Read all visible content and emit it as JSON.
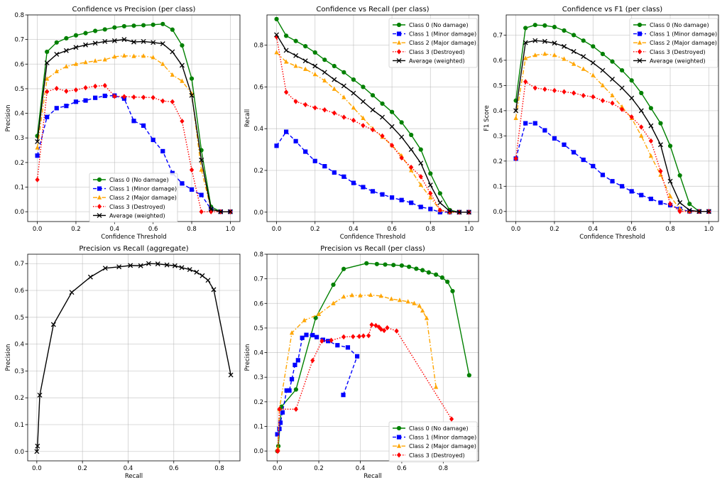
{
  "chart_data": [
    {
      "type": "line",
      "title": "Confidence vs Precision (per class)",
      "xlabel": "Confidence Threshold",
      "ylabel": "Precision",
      "xlim": [
        -0.05,
        1.05
      ],
      "ylim": [
        -0.04,
        0.8
      ],
      "xticks": [
        0.0,
        0.2,
        0.4,
        0.6,
        0.8,
        1.0
      ],
      "xtick_labels": [
        "0.0",
        "0.2",
        "0.4",
        "0.6",
        "0.8",
        "1.0"
      ],
      "yticks": [
        0.0,
        0.1,
        0.2,
        0.3,
        0.4,
        0.5,
        0.6,
        0.7,
        0.8
      ],
      "ytick_labels": [
        "0.0",
        "0.1",
        "0.2",
        "0.3",
        "0.4",
        "0.5",
        "0.6",
        "0.7",
        "0.8"
      ],
      "grid": true,
      "legend_position": "bottom-center",
      "x": [
        0.0,
        0.05,
        0.1,
        0.15,
        0.2,
        0.25,
        0.3,
        0.35,
        0.4,
        0.45,
        0.5,
        0.55,
        0.6,
        0.65,
        0.7,
        0.75,
        0.8,
        0.85,
        0.9,
        0.95,
        1.0
      ],
      "series": [
        {
          "name": "Class 0 (No damage)",
          "color": "#008000",
          "marker": "circle",
          "dash": "solid",
          "values": [
            0.308,
            0.65,
            0.688,
            0.705,
            0.717,
            0.726,
            0.735,
            0.741,
            0.749,
            0.754,
            0.756,
            0.758,
            0.76,
            0.763,
            0.74,
            0.676,
            0.541,
            0.25,
            0.02,
            0.0,
            0.0
          ]
        },
        {
          "name": "Class 1 (Minor damage)",
          "color": "#0000ff",
          "marker": "square",
          "dash": "dashed",
          "values": [
            0.228,
            0.385,
            0.421,
            0.43,
            0.447,
            0.452,
            0.463,
            0.471,
            0.472,
            0.46,
            0.369,
            0.35,
            0.292,
            0.246,
            0.157,
            0.115,
            0.09,
            0.068,
            0.01,
            0.0,
            0.0
          ]
        },
        {
          "name": "Class 2 (Major damage)",
          "color": "#ffa500",
          "marker": "triangle",
          "dash": "dashdot",
          "values": [
            0.26,
            0.54,
            0.57,
            0.59,
            0.6,
            0.607,
            0.613,
            0.618,
            0.63,
            0.634,
            0.632,
            0.633,
            0.627,
            0.6,
            0.556,
            0.531,
            0.48,
            0.17,
            0.01,
            0.0,
            0.0
          ]
        },
        {
          "name": "Class 3 (Destroyed)",
          "color": "#ff0000",
          "marker": "diamond",
          "dash": "dotted",
          "values": [
            0.13,
            0.488,
            0.501,
            0.49,
            0.495,
            0.504,
            0.51,
            0.513,
            0.469,
            0.468,
            0.466,
            0.465,
            0.464,
            0.45,
            0.447,
            0.368,
            0.17,
            0.0,
            0.0,
            0.0,
            0.0
          ]
        },
        {
          "name": "Average (weighted)",
          "color": "#000000",
          "marker": "x",
          "dash": "solid",
          "values": [
            0.285,
            0.605,
            0.64,
            0.655,
            0.668,
            0.678,
            0.685,
            0.692,
            0.695,
            0.7,
            0.69,
            0.692,
            0.688,
            0.683,
            0.65,
            0.595,
            0.473,
            0.21,
            0.01,
            0.0,
            0.0
          ]
        }
      ]
    },
    {
      "type": "line",
      "title": "Confidence vs Recall (per class)",
      "xlabel": "Confidence Threshold",
      "ylabel": "Recall",
      "xlim": [
        -0.05,
        1.05
      ],
      "ylim": [
        -0.045,
        0.945
      ],
      "xticks": [
        0.0,
        0.2,
        0.4,
        0.6,
        0.8,
        1.0
      ],
      "xtick_labels": [
        "0.0",
        "0.2",
        "0.4",
        "0.6",
        "0.8",
        "1.0"
      ],
      "yticks": [
        0.0,
        0.2,
        0.4,
        0.6,
        0.8
      ],
      "ytick_labels": [
        "0.0",
        "0.2",
        "0.4",
        "0.6",
        "0.8"
      ],
      "grid": true,
      "legend_position": "top-right",
      "x": [
        0.0,
        0.05,
        0.1,
        0.15,
        0.2,
        0.25,
        0.3,
        0.35,
        0.4,
        0.45,
        0.5,
        0.55,
        0.6,
        0.65,
        0.7,
        0.75,
        0.8,
        0.85,
        0.9,
        0.95,
        1.0
      ],
      "series": [
        {
          "name": "Class 0 (No damage)",
          "color": "#008000",
          "marker": "circle",
          "dash": "solid",
          "values": [
            0.925,
            0.845,
            0.82,
            0.795,
            0.765,
            0.73,
            0.7,
            0.67,
            0.635,
            0.6,
            0.56,
            0.52,
            0.48,
            0.43,
            0.37,
            0.3,
            0.185,
            0.09,
            0.01,
            0.0,
            0.0
          ]
        },
        {
          "name": "Class 1 (Minor damage)",
          "color": "#0000ff",
          "marker": "square",
          "dash": "dashed",
          "values": [
            0.318,
            0.385,
            0.34,
            0.29,
            0.245,
            0.22,
            0.19,
            0.17,
            0.14,
            0.12,
            0.1,
            0.085,
            0.07,
            0.058,
            0.045,
            0.025,
            0.015,
            0.0,
            0.0,
            0.0,
            0.0
          ]
        },
        {
          "name": "Class 2 (Major damage)",
          "color": "#ffa500",
          "marker": "triangle",
          "dash": "dashdot",
          "values": [
            0.765,
            0.72,
            0.7,
            0.685,
            0.66,
            0.63,
            0.59,
            0.55,
            0.5,
            0.45,
            0.4,
            0.36,
            0.32,
            0.27,
            0.2,
            0.13,
            0.07,
            0.01,
            0.0,
            0.0,
            0.0
          ]
        },
        {
          "name": "Class 3 (Destroyed)",
          "color": "#ff0000",
          "marker": "diamond",
          "dash": "dotted",
          "values": [
            0.84,
            0.575,
            0.53,
            0.515,
            0.5,
            0.49,
            0.475,
            0.455,
            0.44,
            0.415,
            0.395,
            0.365,
            0.32,
            0.26,
            0.215,
            0.17,
            0.09,
            0.01,
            0.0,
            0.0,
            0.0
          ]
        },
        {
          "name": "Average (weighted)",
          "color": "#000000",
          "marker": "x",
          "dash": "solid",
          "values": [
            0.85,
            0.775,
            0.75,
            0.725,
            0.7,
            0.67,
            0.635,
            0.605,
            0.57,
            0.53,
            0.49,
            0.455,
            0.41,
            0.36,
            0.3,
            0.235,
            0.13,
            0.045,
            0.005,
            0.0,
            0.0
          ]
        }
      ]
    },
    {
      "type": "line",
      "title": "Confidence vs F1 (per class)",
      "xlabel": "Confidence Threshold",
      "ylabel": "F1 Score",
      "xlim": [
        -0.05,
        1.05
      ],
      "ylim": [
        -0.04,
        0.78
      ],
      "xticks": [
        0.0,
        0.2,
        0.4,
        0.6,
        0.8,
        1.0
      ],
      "xtick_labels": [
        "0.0",
        "0.2",
        "0.4",
        "0.6",
        "0.8",
        "1.0"
      ],
      "yticks": [
        0.0,
        0.1,
        0.2,
        0.3,
        0.4,
        0.5,
        0.6,
        0.7
      ],
      "ytick_labels": [
        "0.0",
        "0.1",
        "0.2",
        "0.3",
        "0.4",
        "0.5",
        "0.6",
        "0.7"
      ],
      "grid": true,
      "legend_position": "top-right",
      "x": [
        0.0,
        0.05,
        0.1,
        0.15,
        0.2,
        0.25,
        0.3,
        0.35,
        0.4,
        0.45,
        0.5,
        0.55,
        0.6,
        0.65,
        0.7,
        0.75,
        0.8,
        0.85,
        0.9,
        0.95,
        1.0
      ],
      "series": [
        {
          "name": "Class 0 (No damage)",
          "color": "#008000",
          "marker": "circle",
          "dash": "solid",
          "values": [
            0.44,
            0.728,
            0.74,
            0.738,
            0.732,
            0.718,
            0.7,
            0.678,
            0.655,
            0.625,
            0.595,
            0.56,
            0.52,
            0.47,
            0.41,
            0.35,
            0.26,
            0.143,
            0.03,
            0.0,
            0.0
          ]
        },
        {
          "name": "Class 1 (Minor damage)",
          "color": "#0000ff",
          "marker": "square",
          "dash": "dashed",
          "values": [
            0.21,
            0.35,
            0.35,
            0.322,
            0.29,
            0.265,
            0.235,
            0.205,
            0.18,
            0.145,
            0.12,
            0.1,
            0.08,
            0.065,
            0.05,
            0.035,
            0.025,
            0.01,
            0.0,
            0.0,
            0.0
          ]
        },
        {
          "name": "Class 2 (Major damage)",
          "color": "#ffa500",
          "marker": "triangle",
          "dash": "dashdot",
          "values": [
            0.37,
            0.608,
            0.62,
            0.625,
            0.62,
            0.605,
            0.585,
            0.565,
            0.54,
            0.5,
            0.46,
            0.415,
            0.37,
            0.3,
            0.22,
            0.145,
            0.06,
            0.01,
            0.0,
            0.0,
            0.0
          ]
        },
        {
          "name": "Class 3 (Destroyed)",
          "color": "#ff0000",
          "marker": "diamond",
          "dash": "dotted",
          "values": [
            0.21,
            0.515,
            0.49,
            0.485,
            0.48,
            0.475,
            0.47,
            0.46,
            0.455,
            0.44,
            0.43,
            0.405,
            0.375,
            0.335,
            0.28,
            0.16,
            0.03,
            0.0,
            0.0,
            0.0,
            0.0
          ]
        },
        {
          "name": "Average (weighted)",
          "color": "#000000",
          "marker": "x",
          "dash": "solid",
          "values": [
            0.4,
            0.67,
            0.678,
            0.675,
            0.668,
            0.655,
            0.635,
            0.615,
            0.59,
            0.56,
            0.525,
            0.49,
            0.45,
            0.4,
            0.34,
            0.265,
            0.12,
            0.035,
            0.005,
            0.0,
            0.0
          ]
        }
      ]
    },
    {
      "type": "line",
      "title": "Precision vs Recall (aggregate)",
      "xlabel": "Recall",
      "ylabel": "Precision",
      "xlim": [
        -0.04,
        0.89
      ],
      "ylim": [
        -0.035,
        0.735
      ],
      "xticks": [
        0.0,
        0.2,
        0.4,
        0.6,
        0.8
      ],
      "xtick_labels": [
        "0.0",
        "0.2",
        "0.4",
        "0.6",
        "0.8"
      ],
      "yticks": [
        0.0,
        0.1,
        0.2,
        0.3,
        0.4,
        0.5,
        0.6,
        0.7
      ],
      "ytick_labels": [
        "0.0",
        "0.1",
        "0.2",
        "0.3",
        "0.4",
        "0.5",
        "0.6",
        "0.7"
      ],
      "grid": true,
      "series": [
        {
          "name": "",
          "color": "#000000",
          "marker": "x",
          "dash": "solid",
          "x": [
            0.85,
            0.775,
            0.75,
            0.725,
            0.7,
            0.67,
            0.635,
            0.605,
            0.57,
            0.53,
            0.49,
            0.455,
            0.41,
            0.36,
            0.3,
            0.235,
            0.153,
            0.073,
            0.013,
            0.003,
            0.0
          ],
          "values": [
            0.285,
            0.603,
            0.638,
            0.655,
            0.668,
            0.678,
            0.685,
            0.692,
            0.695,
            0.699,
            0.7,
            0.692,
            0.693,
            0.688,
            0.683,
            0.65,
            0.593,
            0.473,
            0.21,
            0.02,
            0.0
          ]
        }
      ]
    },
    {
      "type": "line",
      "title": "Precision vs Recall (per class)",
      "xlabel": "Recall",
      "ylabel": "Precision",
      "xlim": [
        -0.05,
        0.97
      ],
      "ylim": [
        -0.04,
        0.8
      ],
      "xticks": [
        0.0,
        0.2,
        0.4,
        0.6,
        0.8
      ],
      "xtick_labels": [
        "0.0",
        "0.2",
        "0.4",
        "0.6",
        "0.8"
      ],
      "yticks": [
        0.0,
        0.1,
        0.2,
        0.3,
        0.4,
        0.5,
        0.6,
        0.7,
        0.8
      ],
      "ytick_labels": [
        "0.0",
        "0.1",
        "0.2",
        "0.3",
        "0.4",
        "0.5",
        "0.6",
        "0.7",
        "0.8"
      ],
      "grid": true,
      "legend_position": "bottom-right",
      "series": [
        {
          "name": "Class 0 (No damage)",
          "color": "#008000",
          "marker": "circle",
          "dash": "solid",
          "x": [
            0.925,
            0.845,
            0.82,
            0.795,
            0.765,
            0.73,
            0.7,
            0.67,
            0.635,
            0.6,
            0.56,
            0.52,
            0.48,
            0.43,
            0.32,
            0.27,
            0.185,
            0.09,
            0.02,
            0.005,
            0.0
          ],
          "values": [
            0.308,
            0.65,
            0.688,
            0.705,
            0.717,
            0.726,
            0.735,
            0.741,
            0.749,
            0.754,
            0.756,
            0.758,
            0.76,
            0.763,
            0.74,
            0.676,
            0.541,
            0.25,
            0.18,
            0.02,
            0.0
          ]
        },
        {
          "name": "Class 1 (Minor damage)",
          "color": "#0000ff",
          "marker": "square",
          "dash": "dashed",
          "x": [
            0.318,
            0.385,
            0.34,
            0.29,
            0.245,
            0.22,
            0.19,
            0.17,
            0.14,
            0.12,
            0.1,
            0.085,
            0.07,
            0.058,
            0.045,
            0.025,
            0.015,
            0.01,
            0.0
          ],
          "values": [
            0.228,
            0.385,
            0.421,
            0.43,
            0.447,
            0.452,
            0.463,
            0.471,
            0.472,
            0.46,
            0.369,
            0.35,
            0.292,
            0.246,
            0.246,
            0.157,
            0.115,
            0.09,
            0.068
          ]
        },
        {
          "name": "Class 2 (Major damage)",
          "color": "#ffa500",
          "marker": "triangle",
          "dash": "dashdot",
          "x": [
            0.765,
            0.72,
            0.7,
            0.685,
            0.66,
            0.63,
            0.59,
            0.55,
            0.5,
            0.45,
            0.4,
            0.36,
            0.32,
            0.27,
            0.2,
            0.13,
            0.07,
            0.01,
            0.003
          ],
          "values": [
            0.26,
            0.54,
            0.57,
            0.59,
            0.6,
            0.607,
            0.613,
            0.618,
            0.63,
            0.634,
            0.632,
            0.633,
            0.627,
            0.6,
            0.556,
            0.531,
            0.48,
            0.17,
            0.01
          ]
        },
        {
          "name": "Class 3 (Destroyed)",
          "color": "#ff0000",
          "marker": "diamond",
          "dash": "dotted",
          "x": [
            0.84,
            0.575,
            0.53,
            0.515,
            0.5,
            0.49,
            0.475,
            0.455,
            0.44,
            0.415,
            0.395,
            0.365,
            0.32,
            0.26,
            0.215,
            0.17,
            0.09,
            0.01,
            0.003,
            0.0
          ],
          "values": [
            0.13,
            0.488,
            0.501,
            0.49,
            0.495,
            0.504,
            0.51,
            0.513,
            0.469,
            0.468,
            0.466,
            0.465,
            0.464,
            0.45,
            0.447,
            0.368,
            0.17,
            0.17,
            0.0,
            0.0
          ]
        }
      ]
    }
  ]
}
